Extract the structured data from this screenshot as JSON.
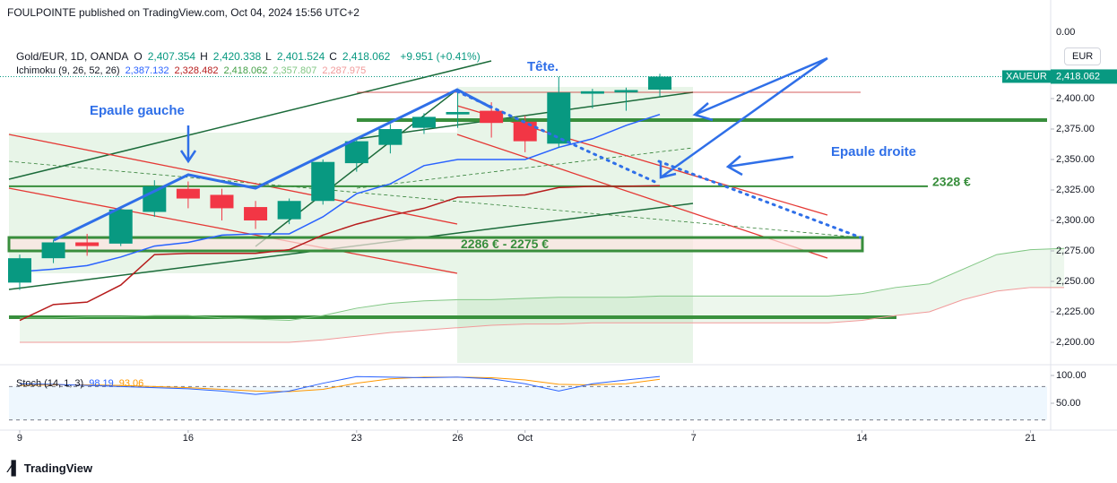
{
  "header": {
    "publisher": "FOULPOINTE published on TradingView.com, Oct 04, 2024 15:56 UTC+2",
    "symbol": "Gold/EUR, 1D, OANDA",
    "ohlc": [
      {
        "key": "O",
        "value": "2,407.354"
      },
      {
        "key": "H",
        "value": "2,420.338"
      },
      {
        "key": "L",
        "value": "2,401.524"
      },
      {
        "key": "C",
        "value": "2,418.062"
      }
    ],
    "change": "+9.951 (+0.41%)",
    "currency": "EUR",
    "brand": "TradingView"
  },
  "ichimoku_legend": {
    "name": "Ichimoku (9, 26, 52, 26)",
    "items": [
      {
        "value": "2,387.132",
        "color": "#2962ff"
      },
      {
        "value": "2,328.482",
        "color": "#b71c1c"
      },
      {
        "value": "2,418.062",
        "color": "#43a047"
      },
      {
        "value": "2,357.807",
        "color": "#81c784"
      },
      {
        "value": "2,287.975",
        "color": "#f19a9a"
      }
    ]
  },
  "stoch_legend": {
    "name": "Stoch (14, 1, 3)",
    "items": [
      {
        "value": "98.19",
        "color": "#2962ff"
      },
      {
        "value": "93.06",
        "color": "#ff9800"
      }
    ]
  },
  "chart_data": {
    "type": "candlestick",
    "x": [
      0,
      1,
      2,
      3,
      4,
      5,
      6,
      7,
      8,
      9,
      10,
      11,
      12,
      13,
      14,
      15,
      16,
      17,
      18,
      19
    ],
    "open": [
      2249,
      2269,
      2282,
      2281,
      2307,
      2326,
      2321,
      2311,
      2301,
      2316,
      2347,
      2362,
      2376,
      2387,
      2390,
      2381,
      2363,
      2404,
      2405,
      2407.354
    ],
    "high": [
      2272,
      2284,
      2289,
      2311,
      2333,
      2332,
      2326,
      2316,
      2318,
      2350,
      2368,
      2379,
      2388,
      2406,
      2397,
      2386,
      2418,
      2408,
      2409,
      2420.338
    ],
    "low": [
      2243,
      2265,
      2271,
      2279,
      2303,
      2310,
      2300,
      2293,
      2297,
      2313,
      2340,
      2355,
      2371,
      2376,
      2368,
      2356,
      2360,
      2392,
      2390,
      2401.524
    ],
    "close": [
      2269,
      2282,
      2279,
      2309,
      2328,
      2318,
      2310,
      2300,
      2316,
      2348,
      2365,
      2375,
      2385,
      2389,
      2380,
      2365,
      2405,
      2406,
      2407,
      2418.062
    ],
    "up_color": "#089981",
    "down_color": "#f23645",
    "lines": [
      {
        "color": "#2962ff",
        "values": [
          2258,
          2260,
          2263,
          2270,
          2279,
          2282,
          2288,
          2289,
          2289,
          2303,
          2322,
          2330,
          2345,
          2350,
          2350,
          2350,
          2360,
          2367,
          2378,
          2387
        ]
      },
      {
        "color": "#b71c1c",
        "values": [
          2218,
          2231,
          2233,
          2247,
          2272,
          2273,
          2273,
          2273,
          2276,
          2288,
          2297,
          2304,
          2310,
          2319,
          2320,
          2321,
          2327,
          2328,
          2328,
          2328.482
        ]
      }
    ],
    "cloud": {
      "x": [
        0,
        1,
        2,
        3,
        4,
        5,
        6,
        7,
        8,
        9,
        10,
        11,
        12,
        13,
        14,
        15,
        16,
        17,
        18,
        19,
        20,
        21,
        22,
        23,
        24,
        25,
        26,
        27,
        28,
        29,
        30,
        31
      ],
      "a": [
        2220,
        2220,
        2221,
        2221,
        2222,
        2222,
        2220,
        2219,
        2218,
        2222,
        2228,
        2232,
        2234,
        2235,
        2235,
        2236,
        2237,
        2237,
        2237,
        2238,
        2238,
        2238,
        2238,
        2238,
        2238,
        2240,
        2245,
        2248,
        2260,
        2272,
        2276,
        2277
      ],
      "b": [
        2200,
        2200,
        2200,
        2200,
        2200,
        2200,
        2200,
        2200,
        2200,
        2202,
        2205,
        2208,
        2210,
        2212,
        2214,
        2215,
        2215,
        2216,
        2216,
        2216,
        2216,
        2216,
        2216,
        2216,
        2216,
        2218,
        2222,
        2225,
        2235,
        2242,
        2245,
        2245
      ],
      "a_color": "#81c784",
      "b_color": "#f19a9a",
      "fill": "rgba(76,175,80,0.10)"
    },
    "xlim": [
      -0.585,
      30.6
    ],
    "xticks": [
      {
        "value": 0,
        "label": "9"
      },
      {
        "value": 5,
        "label": "16"
      },
      {
        "value": 10,
        "label": "23"
      },
      {
        "value": 13,
        "label": "26"
      },
      {
        "value": 15,
        "label": "Oct"
      },
      {
        "value": 20,
        "label": "7"
      },
      {
        "value": 25,
        "label": "14"
      },
      {
        "value": 30,
        "label": "21"
      }
    ],
    "ylim": [
      2183.1,
      2460.3
    ],
    "yticks": [
      {
        "value": 2200,
        "label": "2,200.00"
      },
      {
        "value": 2225,
        "label": "2,225.00"
      },
      {
        "value": 2250,
        "label": "2,250.00"
      },
      {
        "value": 2275,
        "label": "2,275.00"
      },
      {
        "value": 2300,
        "label": "2,300.00"
      },
      {
        "value": 2325,
        "label": "2,325.00"
      },
      {
        "value": 2350,
        "label": "2,350.00"
      },
      {
        "value": 2375,
        "label": "2,375.00"
      },
      {
        "value": 2400,
        "label": "2,400.00"
      }
    ],
    "axis_top_label": "0.00",
    "last_price": {
      "value": 2418.062,
      "label": "2,418.062",
      "symbol": "XAUEUR"
    },
    "level": {
      "value": 2328,
      "label": "2328 €"
    },
    "zone": {
      "values": [
        2275,
        2286
      ],
      "label": "2286 € - 2275 €"
    },
    "annotations": [
      "Epaule gauche",
      "Tête.",
      "Epaule droite"
    ],
    "stoch": {
      "k": [
        85,
        84,
        82,
        80,
        78,
        76,
        72,
        66,
        72,
        86,
        98,
        97,
        96,
        97,
        94,
        85,
        72,
        85,
        92,
        98.19
      ],
      "d": [
        82,
        83,
        83,
        82,
        80,
        78,
        75,
        72,
        71,
        75,
        86,
        94,
        97,
        97,
        96,
        92,
        84,
        83,
        85,
        93.06
      ],
      "k_color": "#2962ff",
      "d_color": "#ff9800",
      "ylim": [
        9.7,
        114.5
      ],
      "yticks": [
        {
          "value": 100,
          "label": "100.00"
        },
        {
          "value": 50,
          "label": "50.00"
        }
      ],
      "bands": [
        80,
        20
      ]
    }
  }
}
